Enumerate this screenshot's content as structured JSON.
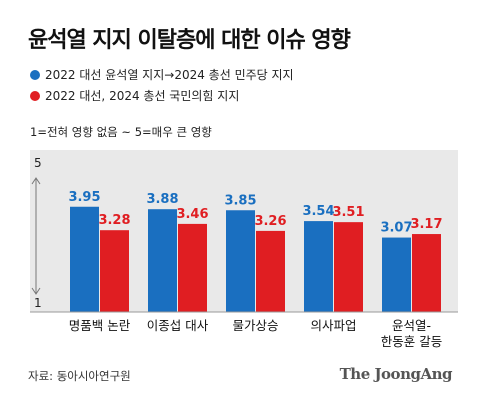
{
  "title": "윤석열 지지 이탈층에 대한 이슈 영향",
  "legend": [
    {
      "label": "2022 대선 윤석열 지지→2024 총선 민주당 지지",
      "color": "#1a6fc0"
    },
    {
      "label": "2022 대선, 2024 총선 국민의힘 지지",
      "color": "#e01e22"
    }
  ],
  "scale_note": "1=전혀 영향 없음  ~  5=매우 큰 영향",
  "source": "자료: 동아시아연구원",
  "brand": "The JoongAng",
  "chart_data": {
    "type": "bar",
    "categories": [
      [
        "명품백 논란"
      ],
      [
        "이종섭 대사"
      ],
      [
        "물가상승"
      ],
      [
        "의사파업"
      ],
      [
        "윤석열-",
        "한동훈 갈등"
      ]
    ],
    "series": [
      {
        "name": "2022 대선 윤석열 지지→2024 총선 민주당 지지",
        "color": "#1a6fc0",
        "values": [
          3.95,
          3.88,
          3.85,
          3.54,
          3.07
        ]
      },
      {
        "name": "2022 대선, 2024 총선 국민의힘 지지",
        "color": "#e01e22",
        "values": [
          3.28,
          3.46,
          3.26,
          3.51,
          3.17
        ]
      }
    ],
    "ylim": [
      1,
      5
    ],
    "yticks": [
      "1",
      "5"
    ],
    "grid": false,
    "legend_position": "top-left"
  }
}
